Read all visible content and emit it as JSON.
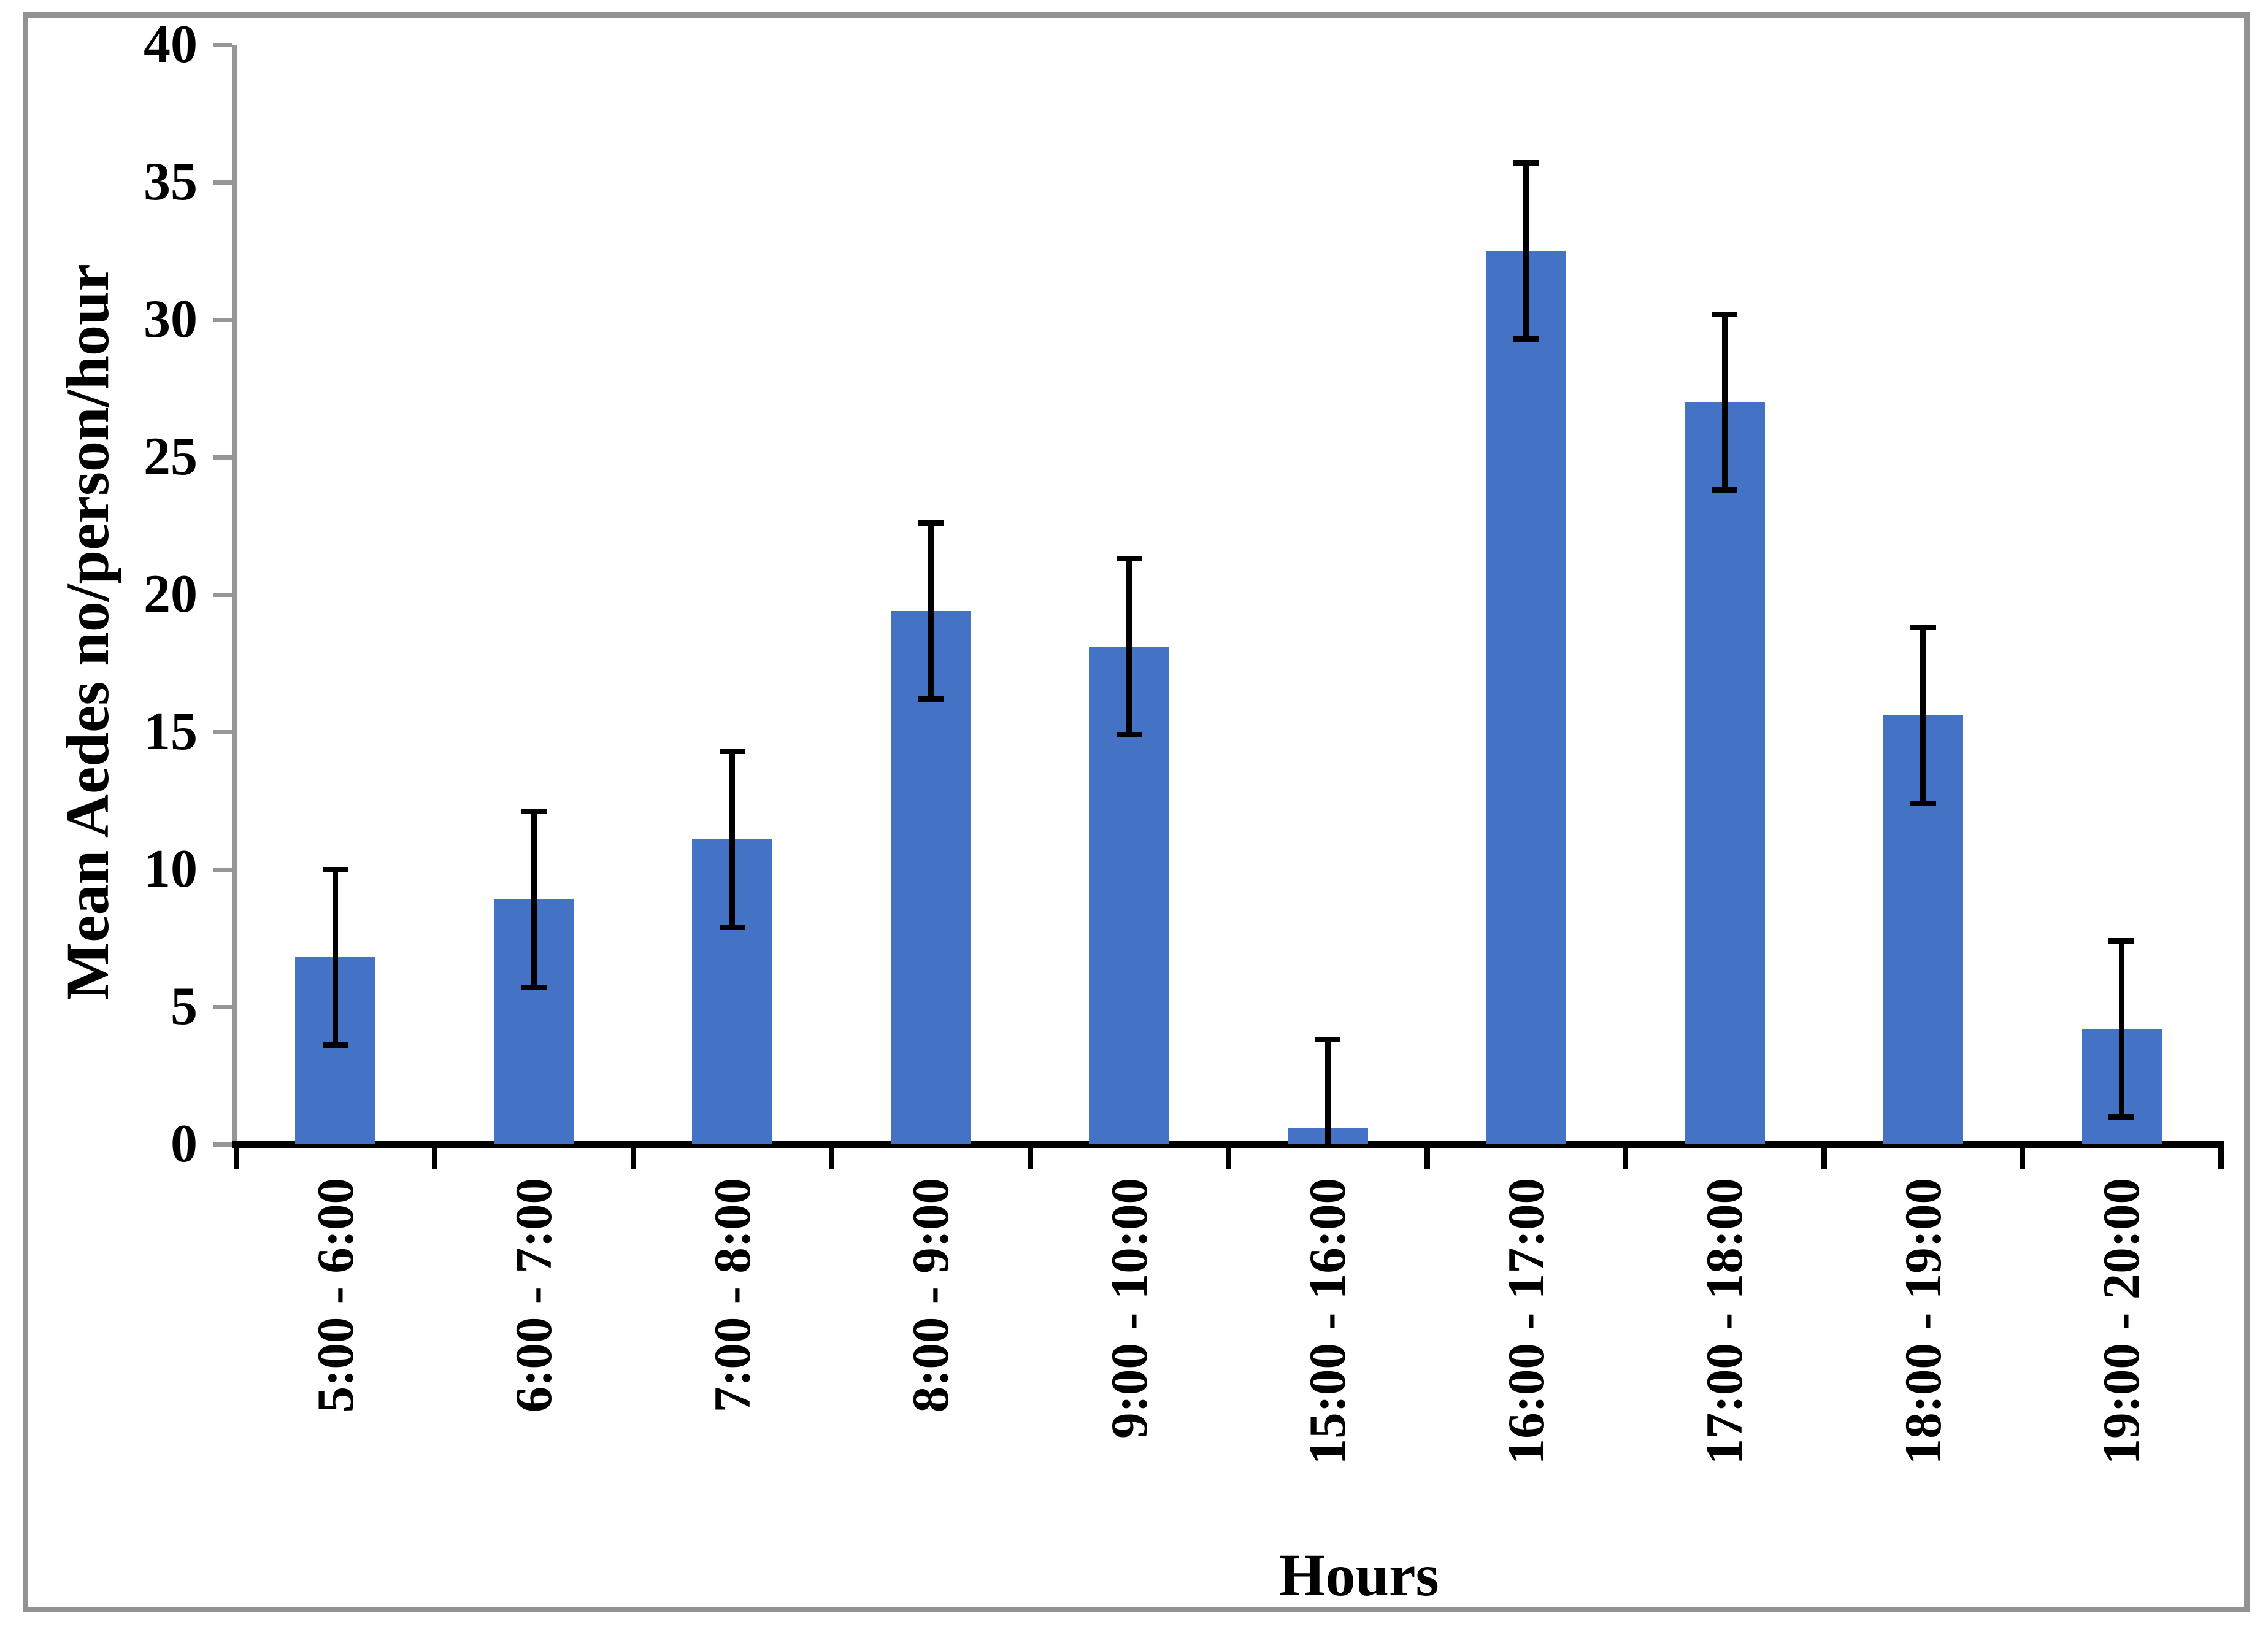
{
  "figure": {
    "background": "#FFFFFF",
    "frame_color": "#929292",
    "bar_color": "#4472C4",
    "error_bar_color": "#000000",
    "y_axis_color": "#969696",
    "x_axis_color": "#000000",
    "text_color": "#000000"
  },
  "chart_data": {
    "type": "bar",
    "title": "",
    "xlabel": "Hours",
    "ylabel": "Mean Aedes no/person/hour",
    "categories": [
      "5:00 - 6:00",
      "6:00 - 7:00",
      "7:00 - 8:00",
      "8:00 - 9:00",
      "9:00 - 10:00",
      "15:00 - 16:00",
      "16:00 - 17:00",
      "17:00 - 18:00",
      "18:00 - 19:00",
      "19:00 - 20:00"
    ],
    "values": [
      6.8,
      8.9,
      11.1,
      19.4,
      18.1,
      0.6,
      32.5,
      27.0,
      15.6,
      4.2
    ],
    "error_bars": [
      3.2,
      3.2,
      3.2,
      3.2,
      3.2,
      3.2,
      3.2,
      3.2,
      3.2,
      3.2
    ],
    "ylim": [
      0,
      40
    ],
    "ytick_step": 5,
    "yticks": [
      0,
      5,
      10,
      15,
      20,
      25,
      30,
      35,
      40
    ],
    "grid": false,
    "legend_position": "none",
    "error_bar_style": "plus-minus, capped, clipped at 0"
  }
}
